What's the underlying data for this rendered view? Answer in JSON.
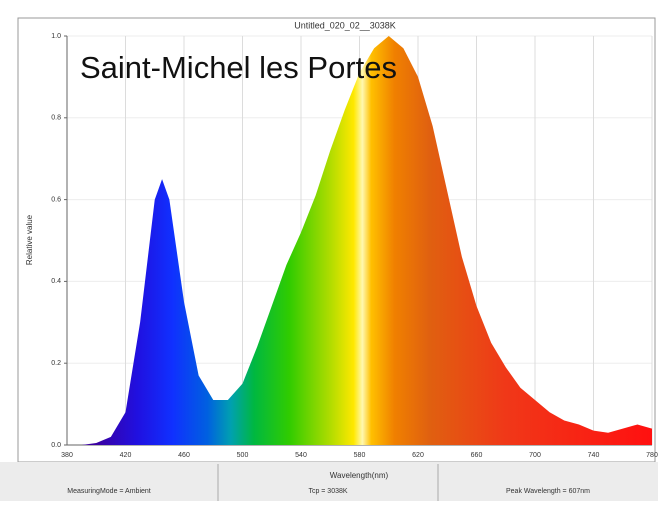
{
  "chart_data": {
    "type": "line",
    "title": "Untitled_020_02__3038K",
    "x_label": "Wavelength(nm)",
    "y_label": "Relative value",
    "annotations": [
      "Saint-Michel les Portes"
    ],
    "footer": [
      "MeasuringMode = Ambient",
      "Tcp = 3038K",
      "Peak Wavelength = 607nm"
    ],
    "x": [
      380,
      390,
      400,
      410,
      420,
      430,
      440,
      445,
      450,
      460,
      470,
      480,
      490,
      500,
      510,
      520,
      530,
      540,
      550,
      560,
      570,
      580,
      590,
      600,
      610,
      620,
      630,
      640,
      650,
      660,
      670,
      680,
      690,
      700,
      710,
      720,
      730,
      740,
      750,
      760,
      770,
      780
    ],
    "values": [
      0,
      0,
      0.005,
      0.02,
      0.08,
      0.3,
      0.6,
      0.65,
      0.6,
      0.35,
      0.17,
      0.11,
      0.11,
      0.15,
      0.24,
      0.34,
      0.44,
      0.52,
      0.61,
      0.72,
      0.82,
      0.91,
      0.97,
      1.0,
      0.97,
      0.9,
      0.78,
      0.62,
      0.46,
      0.34,
      0.25,
      0.19,
      0.14,
      0.11,
      0.08,
      0.06,
      0.05,
      0.035,
      0.03,
      0.04,
      0.05,
      0.04
    ],
    "xlim": [
      380,
      780
    ],
    "ylim": [
      0,
      1
    ],
    "xticks": [
      380,
      420,
      460,
      500,
      540,
      580,
      620,
      660,
      700,
      740,
      780
    ],
    "yticks": [
      {
        "value": 0,
        "label": "0.0"
      },
      0.2,
      0.4,
      0.6,
      0.8,
      {
        "value": 1,
        "label": "1.0"
      }
    ],
    "grid": true
  }
}
